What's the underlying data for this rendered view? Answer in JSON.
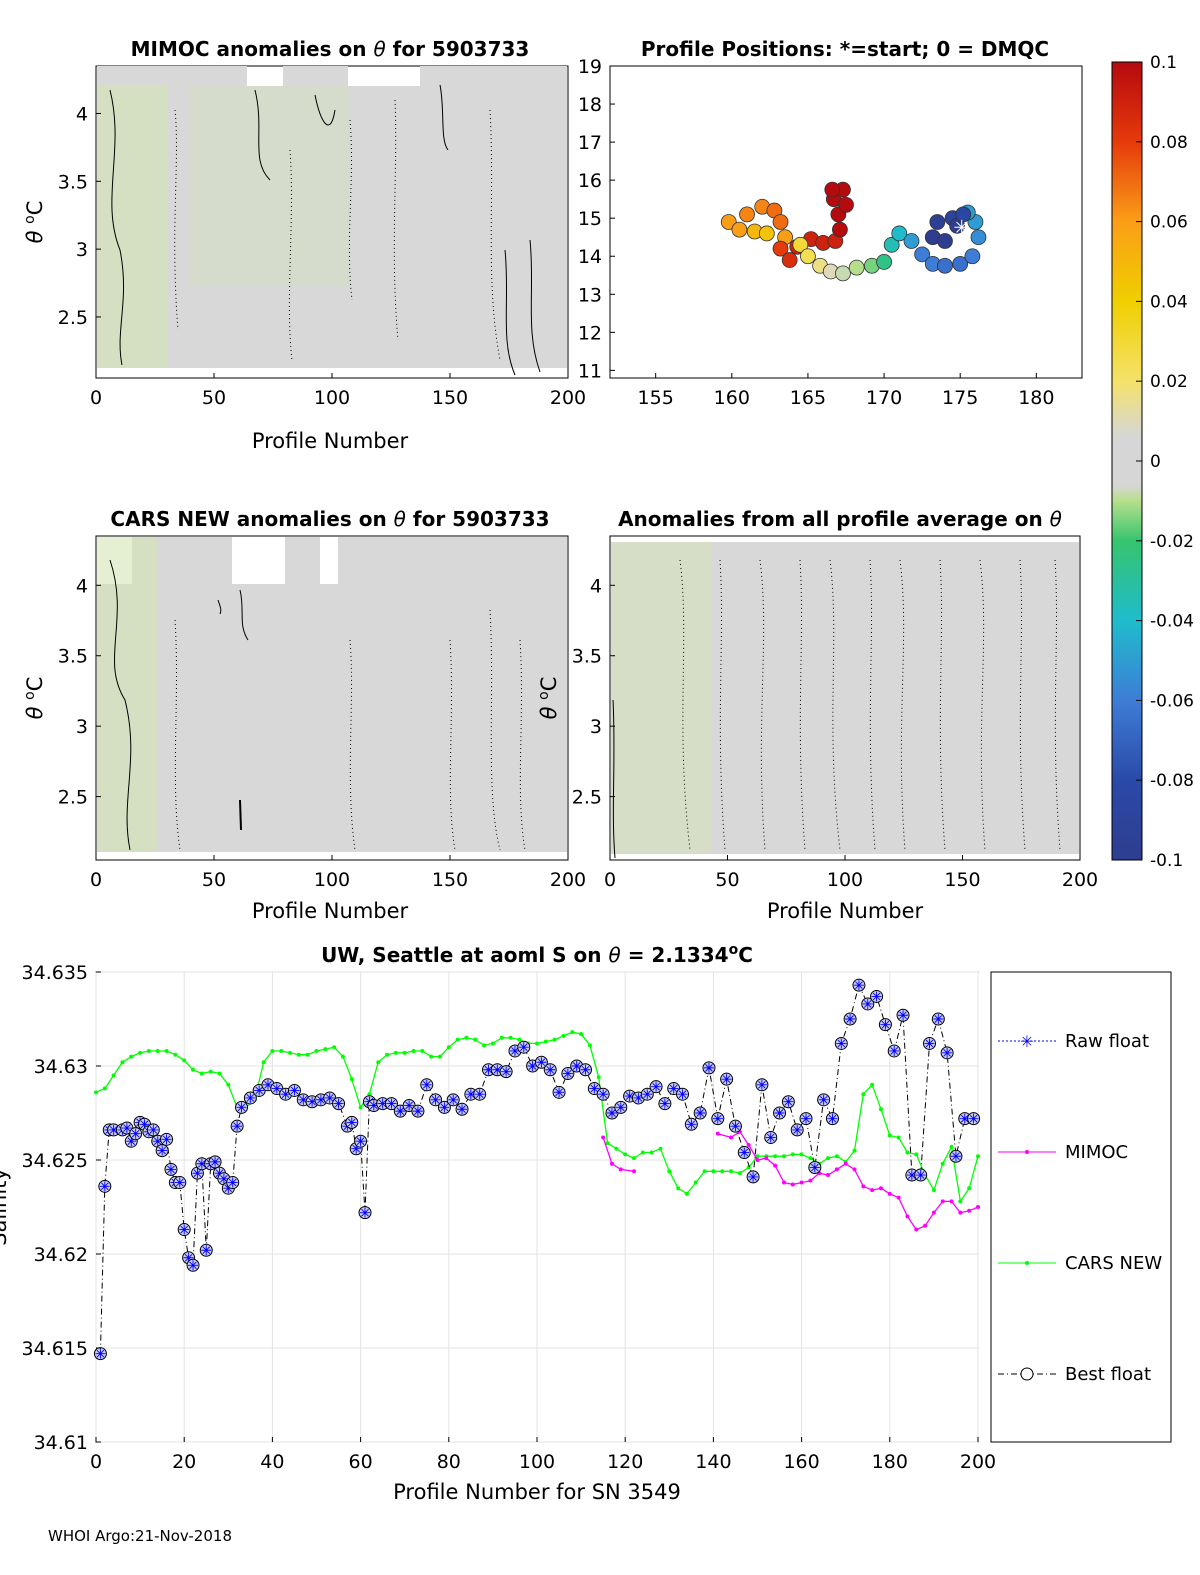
{
  "colors": {
    "grey": "#d8d8d8",
    "green_tint": "#d4e6b5",
    "raw": "#0000ff",
    "mimoc": "#ff00ff",
    "cars": "#00ff00",
    "best": "#000000"
  },
  "panels": {
    "mimoc": {
      "title_a": "MIMOC anomalies on ",
      "theta": "θ",
      "title_b": "  for 5903733",
      "xlabel": "Profile Number",
      "ylabel_theta": "θ",
      "ylabel_unit": "C",
      "ylabel_sup": "o",
      "xticks": [
        "0",
        "50",
        "100",
        "150",
        "200"
      ],
      "yticks": [
        "2.5",
        "3",
        "3.5",
        "4"
      ]
    },
    "positions": {
      "title": "Profile Positions: *=start; 0 = DMQC",
      "xticks": [
        "155",
        "160",
        "165",
        "170",
        "175",
        "180"
      ],
      "yticks": [
        "11",
        "12",
        "13",
        "14",
        "15",
        "16",
        "17",
        "18",
        "19"
      ]
    },
    "cars": {
      "title_a": "CARS NEW anomalies on ",
      "theta": "θ",
      "title_b": " for 5903733",
      "xlabel": "Profile Number",
      "ylabel_theta": "θ",
      "ylabel_unit": "C",
      "ylabel_sup": "o",
      "xticks": [
        "0",
        "50",
        "100",
        "150",
        "200"
      ],
      "yticks": [
        "2.5",
        "3",
        "3.5",
        "4"
      ]
    },
    "allavg": {
      "title_a": "Anomalies from all profile average on ",
      "theta": "θ",
      "xlabel": "Profile Number",
      "ylabel_theta": "θ",
      "ylabel_unit": "C",
      "ylabel_sup": "o",
      "xticks": [
        "0",
        "50",
        "100",
        "150",
        "200"
      ],
      "yticks": [
        "2.5",
        "3",
        "3.5",
        "4"
      ]
    },
    "colorbar": {
      "ticks": [
        "0.1",
        "0.08",
        "0.06",
        "0.04",
        "0.02",
        "0",
        "-0.02",
        "-0.04",
        "-0.06",
        "-0.08",
        "-0.1"
      ]
    },
    "salinity": {
      "title_a": "UW, Seattle at aoml S on ",
      "theta": "θ",
      "title_b": " = 2.1334",
      "title_sup": "o",
      "title_c": "C",
      "xlabel": "Profile Number for SN 3549",
      "ylabel": "Salinity",
      "xticks": [
        "0",
        "20",
        "40",
        "60",
        "80",
        "100",
        "120",
        "140",
        "160",
        "180",
        "200"
      ],
      "yticks": [
        "34.61",
        "34.615",
        "34.62",
        "34.625",
        "34.63",
        "34.635"
      ],
      "legend": [
        "Raw float",
        "MIMOC",
        "CARS NEW",
        "Best float"
      ]
    }
  },
  "chart_data": [
    {
      "type": "heatmap",
      "title": "MIMOC anomalies on θ  for 5903733",
      "xlabel": "Profile Number",
      "ylabel": "θ °C",
      "xlim": [
        0,
        200
      ],
      "ylim": [
        2.05,
        4.35
      ]
    },
    {
      "type": "scatter",
      "title": "Profile Positions: *=start; 0 = DMQC",
      "xlim": [
        152,
        183
      ],
      "ylim": [
        10.8,
        19
      ],
      "color_range": [
        -0.1,
        0.1
      ],
      "track": [
        [
          159.8,
          14.9,
          0.06
        ],
        [
          160.5,
          14.7,
          0.06
        ],
        [
          161.5,
          14.65,
          0.05
        ],
        [
          162.3,
          14.6,
          0.045
        ],
        [
          161.0,
          15.1,
          0.065
        ],
        [
          162.0,
          15.3,
          0.065
        ],
        [
          162.8,
          15.2,
          0.07
        ],
        [
          163.2,
          14.9,
          0.07
        ],
        [
          163.5,
          14.5,
          0.06
        ],
        [
          163.2,
          14.2,
          0.08
        ],
        [
          163.8,
          13.9,
          0.085
        ],
        [
          164.3,
          14.25,
          0.09
        ],
        [
          165.2,
          14.45,
          0.09
        ],
        [
          166.0,
          14.35,
          0.09
        ],
        [
          166.8,
          14.4,
          0.09
        ],
        [
          167.1,
          14.7,
          0.1
        ],
        [
          167.0,
          15.1,
          0.1
        ],
        [
          166.7,
          15.5,
          0.1
        ],
        [
          167.3,
          15.75,
          0.1
        ],
        [
          167.5,
          15.35,
          0.1
        ],
        [
          166.6,
          15.75,
          0.1
        ],
        [
          164.5,
          14.3,
          0.03
        ],
        [
          165.0,
          14.0,
          0.025
        ],
        [
          165.8,
          13.75,
          0.015
        ],
        [
          166.5,
          13.6,
          0.005
        ],
        [
          167.3,
          13.55,
          -0.005
        ],
        [
          168.2,
          13.7,
          -0.01
        ],
        [
          169.2,
          13.75,
          -0.015
        ],
        [
          170.0,
          13.85,
          -0.025
        ],
        [
          170.5,
          14.3,
          -0.035
        ],
        [
          171.0,
          14.6,
          -0.04
        ],
        [
          171.8,
          14.4,
          -0.05
        ],
        [
          172.5,
          14.05,
          -0.06
        ],
        [
          173.2,
          13.8,
          -0.06
        ],
        [
          174.0,
          13.75,
          -0.065
        ],
        [
          175.0,
          13.8,
          -0.065
        ],
        [
          175.8,
          14.0,
          -0.06
        ],
        [
          176.2,
          14.5,
          -0.055
        ],
        [
          176.0,
          14.9,
          -0.05
        ],
        [
          175.5,
          15.15,
          -0.05
        ],
        [
          174.5,
          15.0,
          -0.09
        ],
        [
          173.5,
          14.9,
          -0.095
        ],
        [
          173.2,
          14.5,
          -0.1
        ],
        [
          174.0,
          14.4,
          -0.1
        ],
        [
          174.8,
          14.8,
          -0.1
        ],
        [
          175.2,
          15.1,
          -0.085
        ]
      ],
      "start": [
        175.1,
        14.75
      ]
    },
    {
      "type": "heatmap",
      "title": "CARS NEW anomalies on θ for 5903733",
      "xlabel": "Profile Number",
      "ylabel": "θ °C",
      "xlim": [
        0,
        200
      ],
      "ylim": [
        2.05,
        4.35
      ]
    },
    {
      "type": "heatmap",
      "title": "Anomalies from all profile average on θ",
      "xlabel": "Profile Number",
      "ylabel": "θ °C",
      "xlim": [
        0,
        200
      ],
      "ylim": [
        2.05,
        4.35
      ]
    },
    {
      "type": "line",
      "title": "UW, Seattle at aoml S on θ = 2.1334°C",
      "xlabel": "Profile Number for SN 3549",
      "ylabel": "Salinity",
      "xlim": [
        0,
        200
      ],
      "ylim": [
        34.61,
        34.635
      ],
      "series": [
        {
          "name": "Best float",
          "x": [
            1,
            2,
            3,
            4,
            6,
            7,
            8,
            9,
            10,
            11,
            12,
            13,
            14,
            15,
            16,
            17,
            18,
            19,
            20,
            21,
            22,
            23,
            24,
            25,
            26,
            27,
            28,
            29,
            30,
            31,
            32,
            33,
            35,
            37,
            39,
            41,
            43,
            45,
            47,
            49,
            51,
            53,
            55,
            57,
            58,
            59,
            60,
            61,
            62,
            63,
            65,
            67,
            69,
            71,
            73,
            75,
            77,
            79,
            81,
            83,
            85,
            87,
            89,
            91,
            93,
            95,
            97,
            99,
            101,
            103,
            105,
            107,
            109,
            111,
            113,
            115,
            117,
            119,
            121,
            123,
            125,
            127,
            129,
            131,
            133,
            135,
            137,
            139,
            141,
            143,
            145,
            147,
            149,
            151,
            153,
            155,
            157,
            159,
            161,
            163,
            165,
            167,
            169,
            171,
            173,
            175,
            177,
            179,
            181,
            183,
            185,
            187,
            189,
            191,
            193,
            195,
            197,
            199
          ],
          "y": [
            34.6147,
            34.6236,
            34.6266,
            34.6266,
            34.6266,
            34.6267,
            34.626,
            34.6264,
            34.627,
            34.6269,
            34.6265,
            34.6266,
            34.626,
            34.6255,
            34.6261,
            34.6245,
            34.6238,
            34.6238,
            34.6213,
            34.6198,
            34.6194,
            34.6243,
            34.6248,
            34.6202,
            34.6248,
            34.6249,
            34.6243,
            34.624,
            34.6235,
            34.6238,
            34.6268,
            34.6278,
            34.6283,
            34.6287,
            34.629,
            34.6288,
            34.6285,
            34.6287,
            34.6282,
            34.6281,
            34.6282,
            34.6283,
            34.628,
            34.6268,
            34.627,
            34.6256,
            34.626,
            34.6222,
            34.6281,
            34.6279,
            34.628,
            34.628,
            34.6276,
            34.6279,
            34.6276,
            34.629,
            34.6282,
            34.6278,
            34.6282,
            34.6277,
            34.6285,
            34.6285,
            34.6298,
            34.6298,
            34.6297,
            34.6308,
            34.631,
            34.63,
            34.6302,
            34.6298,
            34.6286,
            34.6296,
            34.63,
            34.6298,
            34.6288,
            34.6285,
            34.6275,
            34.6278,
            34.6284,
            34.6283,
            34.6285,
            34.6289,
            34.628,
            34.6288,
            34.6285,
            34.6269,
            34.6275,
            34.6299,
            34.6272,
            34.6293,
            34.6268,
            34.6254,
            34.6241,
            34.629,
            34.6262,
            34.6275,
            34.6281,
            34.6266,
            34.6272,
            34.6246,
            34.6282,
            34.6272,
            34.6312,
            34.6325,
            34.6343,
            34.6333,
            34.6337,
            34.6322,
            34.6308,
            34.6327,
            34.6242,
            34.6242,
            34.6312,
            34.6325,
            34.6307,
            34.6252,
            34.6272,
            34.6272
          ]
        },
        {
          "name": "MIMOC",
          "x": [
            115,
            117,
            119,
            122,
            141,
            144,
            146,
            148,
            150,
            152,
            154,
            156,
            158,
            160,
            162,
            164,
            166,
            168,
            170,
            172,
            174,
            176,
            178,
            180,
            182,
            184,
            186,
            188,
            190,
            192,
            194,
            196,
            198,
            200
          ],
          "y": [
            34.6262,
            34.6248,
            34.6245,
            34.6244,
            34.6264,
            34.6262,
            34.6265,
            34.6258,
            34.625,
            34.6251,
            34.6247,
            34.6238,
            34.6237,
            34.6238,
            34.6239,
            34.6243,
            34.6242,
            34.6245,
            34.6248,
            34.6245,
            34.6236,
            34.6234,
            34.6235,
            34.6232,
            34.623,
            34.622,
            34.6213,
            34.6215,
            34.6222,
            34.6228,
            34.6228,
            34.6222,
            34.6223,
            34.6225
          ]
        },
        {
          "name": "CARS NEW",
          "x": [
            0,
            2,
            4,
            6,
            8,
            10,
            12,
            14,
            16,
            18,
            20,
            22,
            24,
            26,
            28,
            30,
            32,
            34,
            36,
            38,
            40,
            42,
            44,
            46,
            48,
            50,
            52,
            54,
            56,
            58,
            60,
            62,
            64,
            66,
            68,
            70,
            72,
            74,
            76,
            78,
            80,
            82,
            84,
            86,
            88,
            90,
            92,
            94,
            96,
            98,
            100,
            102,
            104,
            106,
            108,
            110,
            112,
            114,
            116,
            118,
            120,
            122,
            124,
            126,
            128,
            130,
            132,
            134,
            136,
            138,
            140,
            142,
            144,
            146,
            148,
            150,
            152,
            154,
            156,
            158,
            160,
            162,
            164,
            166,
            168,
            170,
            172,
            174,
            176,
            178,
            180,
            182,
            184,
            186,
            188,
            190,
            192,
            194,
            196,
            198,
            200
          ],
          "y": [
            34.6286,
            34.6288,
            34.6295,
            34.6302,
            34.6305,
            34.6307,
            34.6308,
            34.6308,
            34.6308,
            34.6306,
            34.6303,
            34.6298,
            34.6296,
            34.6297,
            34.6296,
            34.629,
            34.6278,
            34.6278,
            34.6282,
            34.6302,
            34.6308,
            34.6308,
            34.6307,
            34.6306,
            34.6306,
            34.6308,
            34.6309,
            34.631,
            34.6305,
            34.6293,
            34.6278,
            34.6285,
            34.6302,
            34.6306,
            34.6307,
            34.6307,
            34.6308,
            34.6308,
            34.6305,
            34.6305,
            34.631,
            34.6314,
            34.6315,
            34.6314,
            34.6311,
            34.6312,
            34.6315,
            34.6315,
            34.6314,
            34.6312,
            34.6312,
            34.6313,
            34.6314,
            34.6316,
            34.6318,
            34.6317,
            34.6311,
            34.6294,
            34.6259,
            34.6256,
            34.6253,
            34.6251,
            34.6254,
            34.6254,
            34.6256,
            34.6244,
            34.6235,
            34.6232,
            34.6238,
            34.6244,
            34.6244,
            34.6244,
            34.6244,
            34.6243,
            34.6246,
            34.6252,
            34.6252,
            34.6252,
            34.6252,
            34.6253,
            34.6253,
            34.6251,
            34.6248,
            34.6251,
            34.6252,
            34.6249,
            34.6255,
            34.6285,
            34.629,
            34.6277,
            34.6263,
            34.6262,
            34.6254,
            34.6253,
            34.6242,
            34.6234,
            34.6248,
            34.6257,
            34.6228,
            34.6235,
            34.6252
          ]
        }
      ]
    }
  ],
  "footer": "WHOI Argo:21-Nov-2018"
}
